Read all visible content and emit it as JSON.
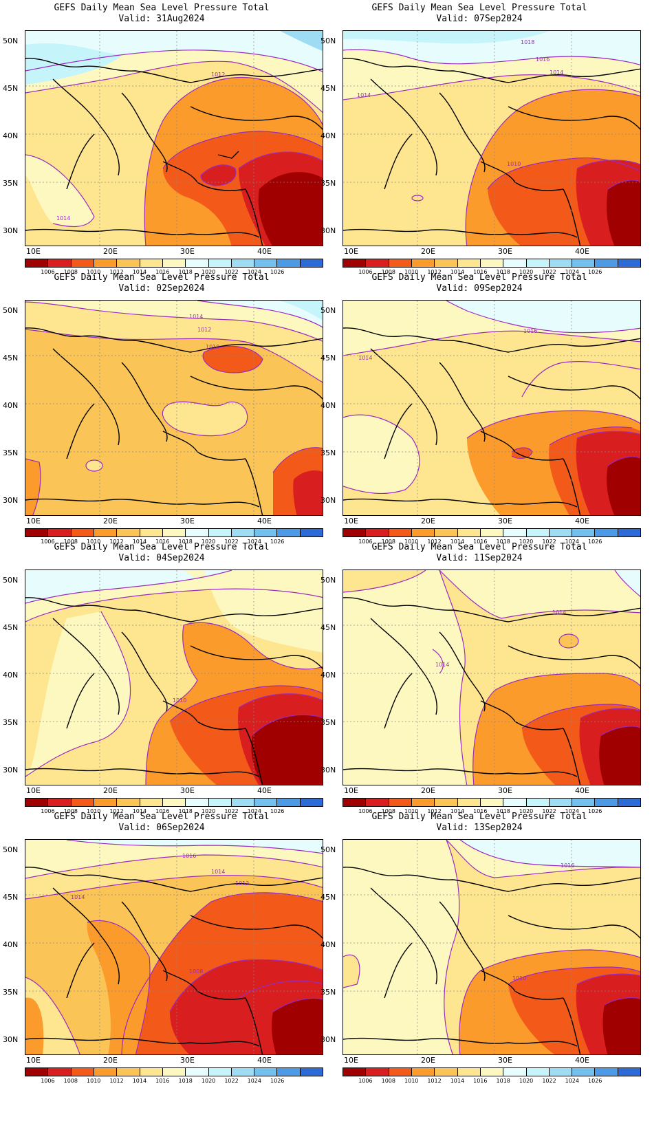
{
  "colorbar": {
    "labels": [
      "1006",
      "1008",
      "1010",
      "1012",
      "1014",
      "1016",
      "1018",
      "1020",
      "1022",
      "1024",
      "1026"
    ],
    "colors": [
      "#a00000",
      "#d81e1e",
      "#f35a1a",
      "#fb9b2c",
      "#fbc457",
      "#fde68f",
      "#fdf8c0",
      "#e6fcfd",
      "#c6f4fb",
      "#9edcf4",
      "#72c0ee",
      "#4c9ae6",
      "#2c6ad8"
    ]
  },
  "axes": {
    "lat_labels": [
      "50N",
      "45N",
      "40N",
      "35N",
      "30N"
    ],
    "lon_labels": [
      "10E",
      "20E",
      "30E",
      "40E"
    ]
  },
  "contour_color": "#9a2ac0",
  "panels": [
    {
      "title": "GEFS Daily Mean Sea Level Pressure Total",
      "valid": "Valid: 31Aug2024",
      "contour_labels": [
        "1012",
        "1014"
      ]
    },
    {
      "title": "GEFS Daily Mean Sea Level Pressure Total",
      "valid": "Valid: 07Sep2024",
      "contour_labels": [
        "1018",
        "1016",
        "1014",
        "1014",
        "1010"
      ]
    },
    {
      "title": "GEFS Daily Mean Sea Level Pressure Total",
      "valid": "Valid: 02Sep2024",
      "contour_labels": [
        "1014",
        "1012",
        "1010"
      ]
    },
    {
      "title": "GEFS Daily Mean Sea Level Pressure Total",
      "valid": "Valid: 09Sep2024",
      "contour_labels": [
        "1016",
        "1014"
      ]
    },
    {
      "title": "GEFS Daily Mean Sea Level Pressure Total",
      "valid": "Valid: 04Sep2024",
      "contour_labels": [
        "1010"
      ]
    },
    {
      "title": "GEFS Daily Mean Sea Level Pressure Total",
      "valid": "Valid: 11Sep2024",
      "contour_labels": [
        "1014",
        "1014"
      ]
    },
    {
      "title": "GEFS Daily Mean Sea Level Pressure Total",
      "valid": "Valid: 06Sep2024",
      "contour_labels": [
        "1016",
        "1014",
        "1012",
        "1014",
        "1008"
      ]
    },
    {
      "title": "GEFS Daily Mean Sea Level Pressure Total",
      "valid": "Valid: 13Sep2024",
      "contour_labels": [
        "1016",
        "1010"
      ]
    }
  ]
}
